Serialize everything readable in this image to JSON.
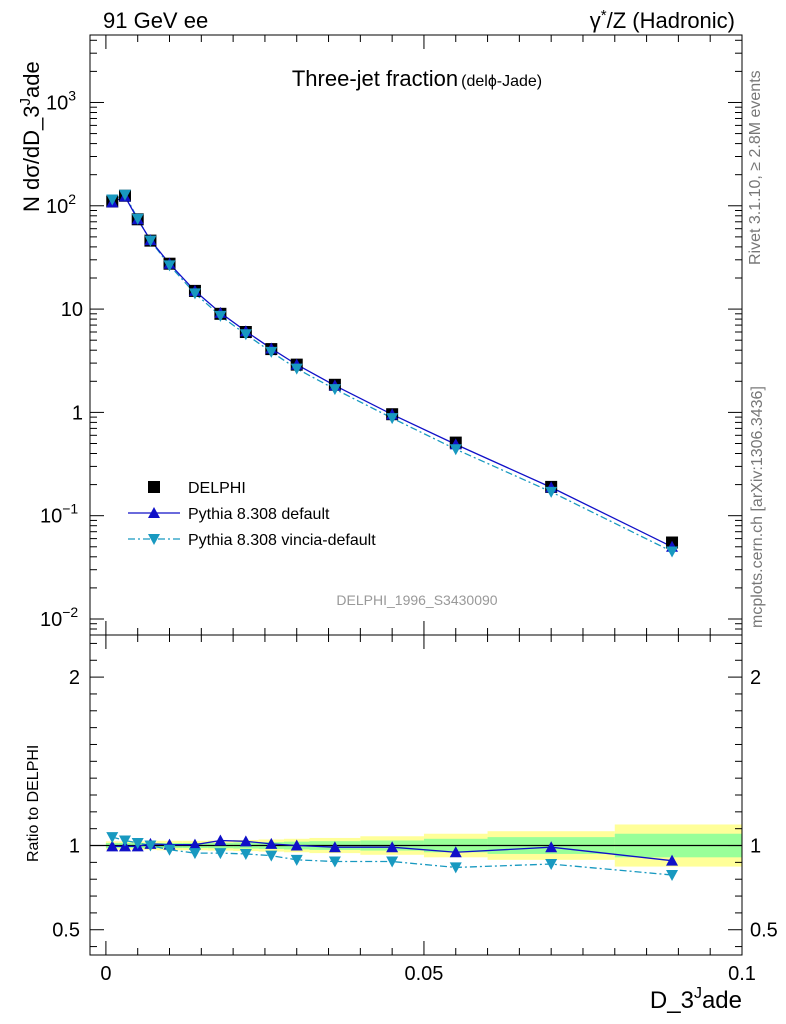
{
  "header": {
    "left": "91 GeV ee",
    "right_prefix": "γ",
    "right_sup": "*",
    "right_suffix": "/Z (Hadronic)"
  },
  "side_text": {
    "upper": "Rivet 3.1.10, ≥ 2.8M events",
    "lower": "mcplots.cern.ch [arXiv:1306.3436]"
  },
  "watermark": "DELPHI_1996_S3430090",
  "colors": {
    "data": "#000000",
    "default": "#1010c8",
    "vincia": "#1899c0",
    "band_inner": "#99ff99",
    "band_outer": "#ffff99"
  },
  "chart_data": [
    {
      "type": "line",
      "title_main": "Three-jet fraction",
      "title_sub": "(delϕ-Jade)",
      "ylabel": "N dσ/dD_3",
      "ylabel_sup": "J",
      "ylabel_suffix": "ade",
      "y_scale": "log",
      "ylim": [
        0.007,
        4500
      ],
      "xlim": [
        -0.0025,
        0.1
      ],
      "y_ticks": [
        {
          "v": 0.01,
          "base": "10",
          "exp": "−2"
        },
        {
          "v": 0.1,
          "base": "10",
          "exp": "−1"
        },
        {
          "v": 1,
          "base": "1",
          "exp": ""
        },
        {
          "v": 10,
          "base": "10",
          "exp": ""
        },
        {
          "v": 100,
          "base": "10",
          "exp": "2"
        },
        {
          "v": 1000,
          "base": "10",
          "exp": "3"
        }
      ],
      "x": [
        0.001,
        0.003,
        0.005,
        0.007,
        0.01,
        0.014,
        0.018,
        0.022,
        0.026,
        0.03,
        0.036,
        0.045,
        0.055,
        0.07,
        0.089
      ],
      "series": [
        {
          "name": "DELPHI",
          "values": [
            110,
            125,
            74,
            46,
            27.5,
            15,
            9,
            6,
            4.1,
            2.9,
            1.85,
            0.96,
            0.51,
            0.19,
            0.055
          ]
        },
        {
          "name": "Pythia 8.308 default",
          "values": [
            108,
            123,
            74,
            46.5,
            27.5,
            15,
            9.2,
            6.1,
            4.15,
            2.9,
            1.82,
            0.955,
            0.49,
            0.188,
            0.05
          ]
        },
        {
          "name": "Pythia 8.308 vincia-default",
          "values": [
            115,
            128,
            75,
            46,
            26.5,
            14.2,
            8.6,
            5.7,
            3.85,
            2.65,
            1.68,
            0.88,
            0.44,
            0.17,
            0.045
          ]
        }
      ],
      "legend_position": "lower-left"
    },
    {
      "type": "line",
      "ylabel": "Ratio to DELPHI",
      "xlabel": "D_3",
      "xlabel_sup": "J",
      "xlabel_suffix": "ade",
      "ylim": [
        0.35,
        2.25
      ],
      "xlim": [
        -0.0025,
        0.1
      ],
      "y_ticks": [
        0.5,
        1,
        2
      ],
      "y_tick_labels": [
        "0.5",
        "1",
        "2"
      ],
      "x_ticks": [
        0,
        0.05,
        0.1
      ],
      "x_tick_labels": [
        "0",
        "0.05",
        "0.1"
      ],
      "reference": 1,
      "bands": [
        {
          "x0": 0.0,
          "x1": 0.002,
          "inner": 0.015,
          "outer": 0.025
        },
        {
          "x0": 0.002,
          "x1": 0.004,
          "inner": 0.015,
          "outer": 0.025
        },
        {
          "x0": 0.004,
          "x1": 0.006,
          "inner": 0.015,
          "outer": 0.025
        },
        {
          "x0": 0.006,
          "x1": 0.008,
          "inner": 0.015,
          "outer": 0.025
        },
        {
          "x0": 0.008,
          "x1": 0.012,
          "inner": 0.015,
          "outer": 0.028
        },
        {
          "x0": 0.012,
          "x1": 0.016,
          "inner": 0.015,
          "outer": 0.028
        },
        {
          "x0": 0.016,
          "x1": 0.02,
          "inner": 0.016,
          "outer": 0.03
        },
        {
          "x0": 0.02,
          "x1": 0.024,
          "inner": 0.018,
          "outer": 0.033
        },
        {
          "x0": 0.024,
          "x1": 0.028,
          "inner": 0.02,
          "outer": 0.036
        },
        {
          "x0": 0.028,
          "x1": 0.032,
          "inner": 0.023,
          "outer": 0.04
        },
        {
          "x0": 0.032,
          "x1": 0.04,
          "inner": 0.026,
          "outer": 0.045
        },
        {
          "x0": 0.04,
          "x1": 0.05,
          "inner": 0.03,
          "outer": 0.055
        },
        {
          "x0": 0.05,
          "x1": 0.06,
          "inner": 0.04,
          "outer": 0.07
        },
        {
          "x0": 0.06,
          "x1": 0.08,
          "inner": 0.05,
          "outer": 0.085
        },
        {
          "x0": 0.08,
          "x1": 0.1,
          "inner": 0.07,
          "outer": 0.125
        }
      ],
      "x": [
        0.001,
        0.003,
        0.005,
        0.007,
        0.01,
        0.014,
        0.018,
        0.022,
        0.026,
        0.03,
        0.036,
        0.045,
        0.055,
        0.07,
        0.089
      ],
      "series": [
        {
          "name": "Pythia 8.308 default",
          "values": [
            0.995,
            0.995,
            0.995,
            1.01,
            1.005,
            1.005,
            1.03,
            1.025,
            1.01,
            1.0,
            0.99,
            0.99,
            0.96,
            0.99,
            0.91
          ]
        },
        {
          "name": "Pythia 8.308 vincia-default",
          "values": [
            1.05,
            1.03,
            1.015,
            1.0,
            0.975,
            0.955,
            0.955,
            0.95,
            0.94,
            0.915,
            0.905,
            0.905,
            0.87,
            0.89,
            0.825
          ]
        }
      ]
    }
  ]
}
